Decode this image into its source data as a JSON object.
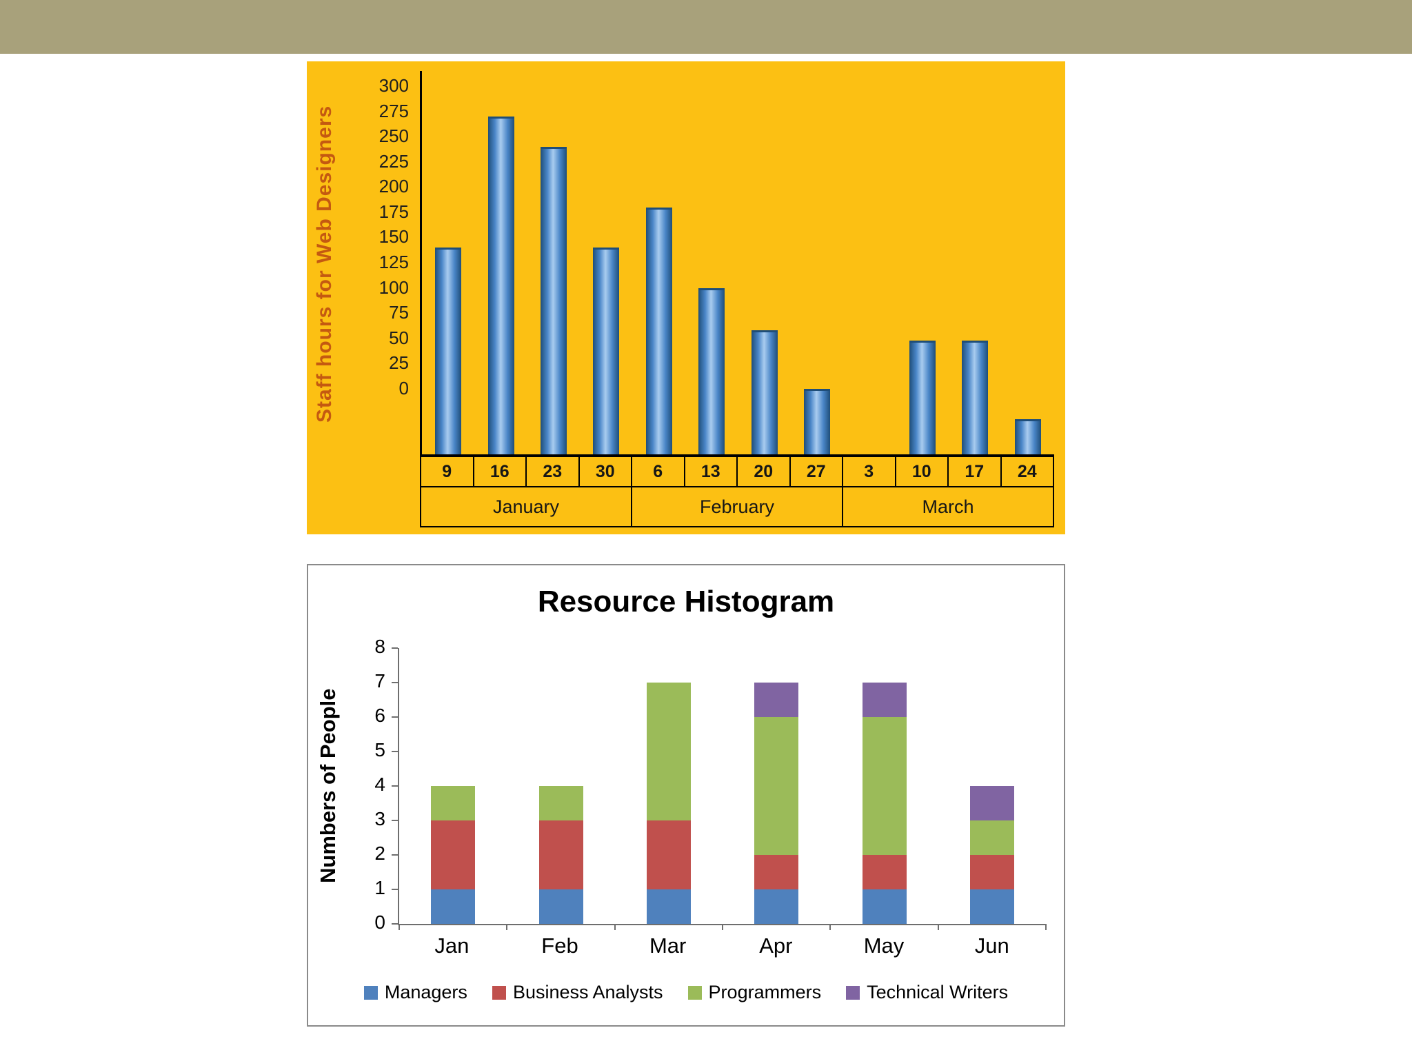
{
  "banner": {
    "color": "#a8a17b"
  },
  "chart_data": [
    {
      "type": "bar",
      "title": "Staff hours for Web Designers",
      "ylabel": "Staff hours for Web Designers",
      "ylabel_color": "#C45911",
      "background": "#FCC013",
      "bar_color": "#4A86C8",
      "bar_edge_color": "#1F4E79",
      "bar_highlight_color": "#A9CCEF",
      "ylim": [
        -65,
        315
      ],
      "yticks": [
        300,
        275,
        250,
        225,
        200,
        175,
        150,
        125,
        100,
        75,
        50,
        25,
        0
      ],
      "categories": [
        "9",
        "16",
        "23",
        "30",
        "6",
        "13",
        "20",
        "27",
        "3",
        "10",
        "17",
        "24"
      ],
      "values": [
        140,
        270,
        240,
        140,
        180,
        100,
        58,
        0,
        null,
        48,
        48,
        -30
      ],
      "month_groups": [
        {
          "label": "January",
          "span": 4
        },
        {
          "label": "February",
          "span": 4
        },
        {
          "label": "March",
          "span": 4
        }
      ],
      "grid": false,
      "legend": "none"
    },
    {
      "type": "stacked-bar",
      "title": "Resource Histogram",
      "ylabel": "Numbers of People",
      "xlabel": "",
      "ylim": [
        0,
        8
      ],
      "yticks": [
        8,
        7,
        6,
        5,
        4,
        3,
        2,
        1,
        0
      ],
      "categories": [
        "Jan",
        "Feb",
        "Mar",
        "Apr",
        "May",
        "Jun"
      ],
      "series": [
        {
          "name": "Managers",
          "color": "#4F81BD",
          "values": [
            1,
            1,
            1,
            1,
            1,
            1
          ]
        },
        {
          "name": "Business Analysts",
          "color": "#C0504D",
          "values": [
            2,
            2,
            2,
            1,
            1,
            1
          ]
        },
        {
          "name": "Programmers",
          "color": "#9BBB59",
          "values": [
            1,
            1,
            4,
            4,
            4,
            1
          ]
        },
        {
          "name": "Technical Writers",
          "color": "#8064A2",
          "values": [
            0,
            0,
            0,
            1,
            1,
            1
          ]
        }
      ],
      "grid": false,
      "legend_position": "bottom"
    }
  ]
}
